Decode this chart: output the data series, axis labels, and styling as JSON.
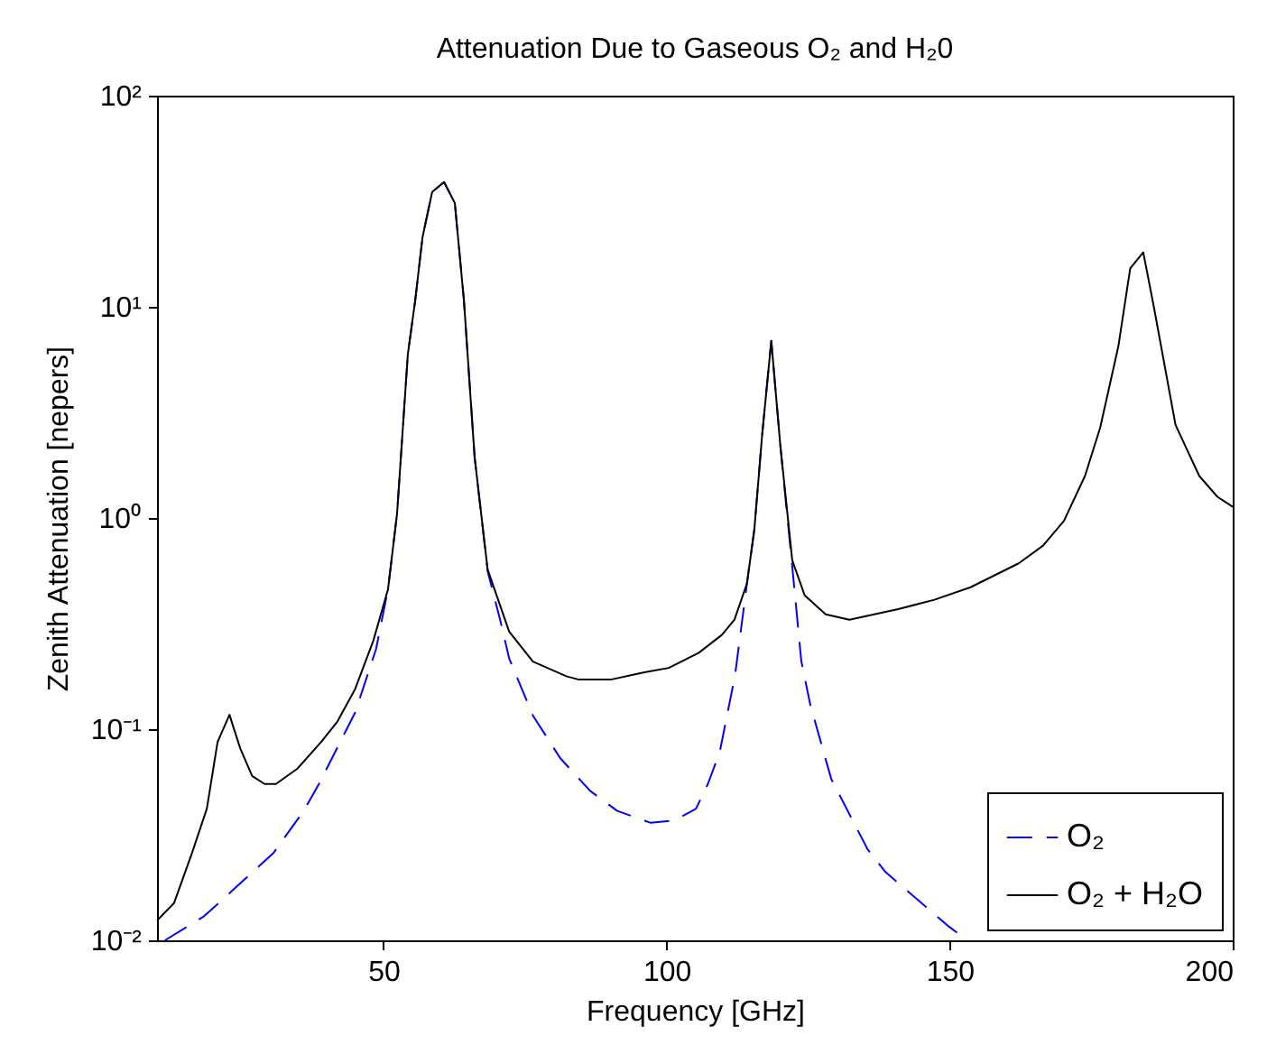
{
  "chart_data": {
    "type": "line",
    "title": "Attenuation Due to Gaseous O₂ and H₂0",
    "xlabel": "Frequency [GHz]",
    "ylabel": "Zenith Attenuation [nepers]",
    "log": "y",
    "xlim": [
      10,
      200
    ],
    "xticks": [
      50,
      100,
      150,
      200
    ],
    "ylim": [
      0.01,
      100
    ],
    "yticks": [
      {
        "value": 0.01,
        "label": "10⁻²"
      },
      {
        "value": 0.1,
        "label": "10⁻¹"
      },
      {
        "value": 1,
        "label": "10⁰"
      },
      {
        "value": 10,
        "label": "10¹"
      },
      {
        "value": 100,
        "label": "10²"
      }
    ],
    "grid": false,
    "legend": "bottom right",
    "marker": "none",
    "series": [
      {
        "name": "O₂",
        "color": "#0000ff",
        "line_style": "dashed",
        "x": [
          11.4,
          18.3,
          23.1,
          30.6,
          35.9,
          38.6,
          45,
          48.7,
          50.8,
          52.4,
          54.3,
          55.6,
          56.9,
          58.6,
          60.7,
          62.6,
          64.2,
          66.1,
          68.4,
          70.6,
          72.2,
          76.4,
          81.2,
          86.5,
          91.3,
          97.2,
          101.5,
          105.2,
          107.3,
          109.4,
          112.1,
          114.2,
          115.5,
          116.9,
          118.5,
          120.1,
          122.2,
          123.8,
          125.4,
          129.1,
          131.8,
          135.5,
          138.7,
          149.9,
          153.1
        ],
        "values": [
          0.01,
          0.013,
          0.017,
          0.026,
          0.041,
          0.055,
          0.12,
          0.24,
          0.46,
          1.05,
          5.96,
          10.7,
          21.4,
          35,
          39,
          31,
          10.8,
          1.94,
          0.56,
          0.33,
          0.216,
          0.116,
          0.073,
          0.051,
          0.041,
          0.036,
          0.037,
          0.042,
          0.055,
          0.078,
          0.18,
          0.49,
          0.88,
          2.5,
          6.9,
          2.2,
          0.59,
          0.21,
          0.13,
          0.058,
          0.042,
          0.027,
          0.021,
          0.0116,
          0.01
        ]
      },
      {
        "name": "O₂ + H₂O",
        "color": "#000000",
        "line_style": "solid",
        "x": [
          10,
          13,
          16.2,
          18.8,
          20.7,
          22.8,
          24.7,
          26.8,
          29,
          31,
          34.8,
          39,
          41.8,
          45,
          48.2,
          50.8,
          52.4,
          54.3,
          55.6,
          56.9,
          58.6,
          60.7,
          62.6,
          64.2,
          66.1,
          68.4,
          72.2,
          76.4,
          82.3,
          84.4,
          90.3,
          96.1,
          100.4,
          105.7,
          109.8,
          112,
          114.2,
          115.5,
          116.9,
          118.5,
          120.1,
          122.2,
          124.4,
          128.1,
          132.3,
          140.9,
          147.3,
          153.7,
          162.2,
          166.5,
          170.2,
          173.9,
          176.6,
          179.8,
          181.9,
          184.2,
          186.1,
          189.9,
          194.1,
          197.3,
          200
        ],
        "values": [
          0.0124,
          0.015,
          0.026,
          0.042,
          0.087,
          0.117,
          0.081,
          0.06,
          0.055,
          0.055,
          0.065,
          0.087,
          0.108,
          0.155,
          0.262,
          0.46,
          1.05,
          5.96,
          10.7,
          21.4,
          35,
          39,
          31,
          10.8,
          1.94,
          0.57,
          0.29,
          0.209,
          0.178,
          0.172,
          0.172,
          0.186,
          0.195,
          0.23,
          0.28,
          0.33,
          0.49,
          0.88,
          2.5,
          6.9,
          2.2,
          0.63,
          0.43,
          0.35,
          0.33,
          0.37,
          0.41,
          0.47,
          0.61,
          0.74,
          0.97,
          1.58,
          2.68,
          6.5,
          15.2,
          18.1,
          9.9,
          2.76,
          1.58,
          1.26,
          1.13
        ]
      }
    ]
  }
}
